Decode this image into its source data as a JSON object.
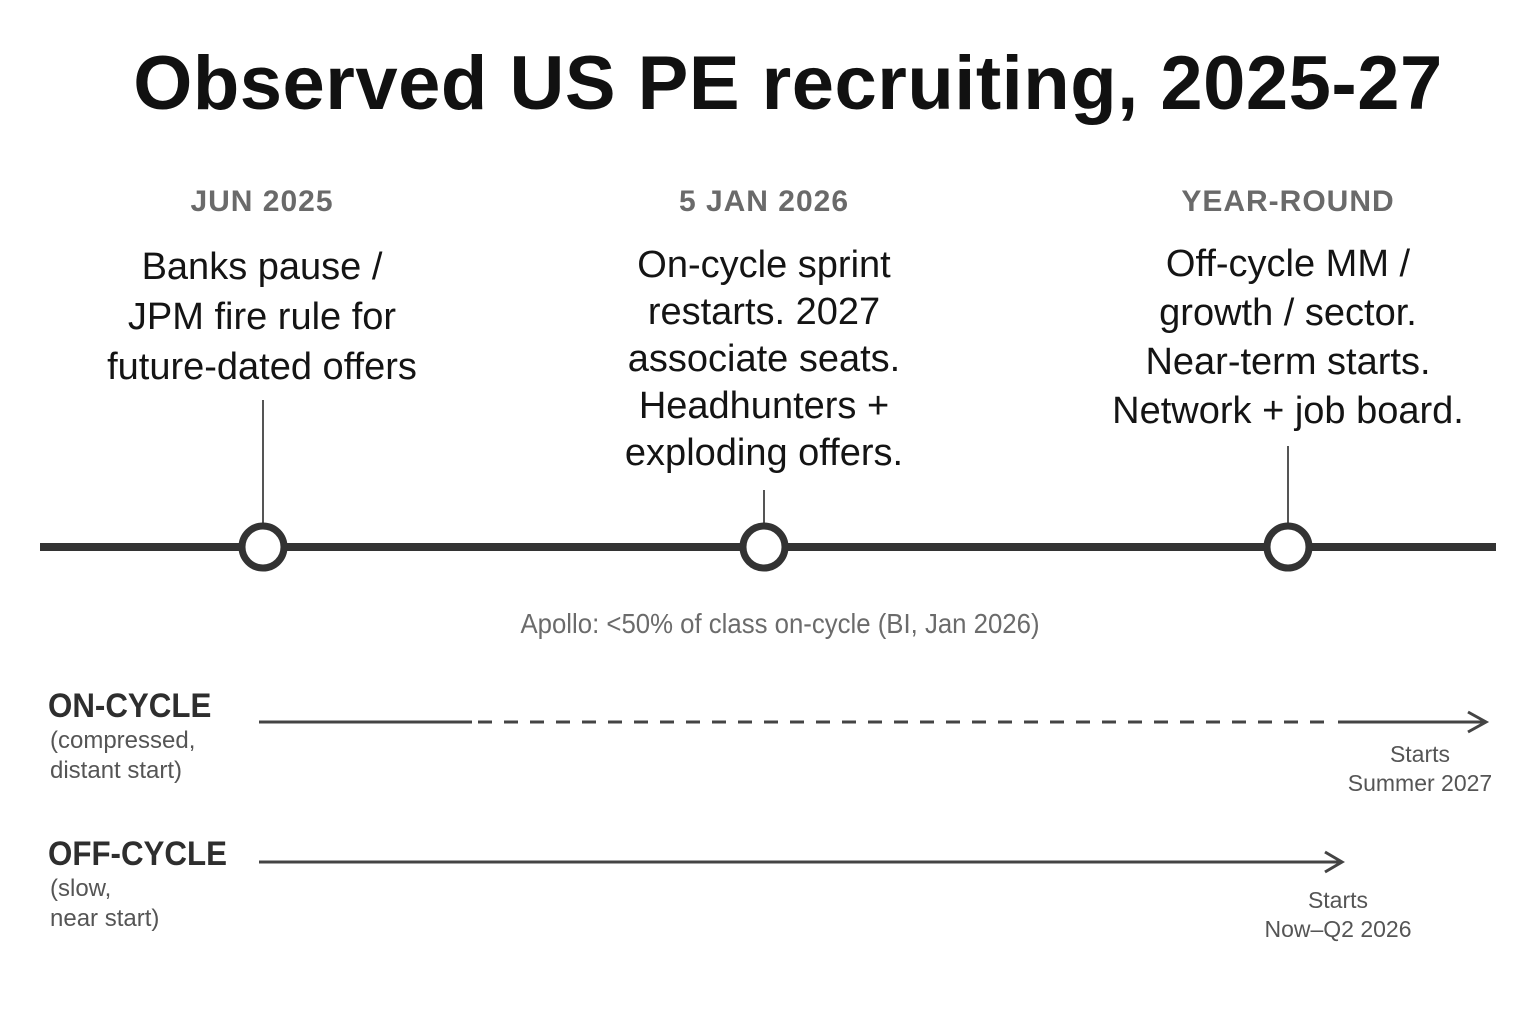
{
  "title": "Observed US PE recruiting, 2025-27",
  "events": [
    {
      "date": "JUN 2025",
      "lines": [
        "Banks pause /",
        "JPM fire rule for",
        "future-dated offers"
      ]
    },
    {
      "date": "5 JAN 2026",
      "lines": [
        "On-cycle sprint",
        "restarts. 2027",
        "associate seats.",
        "Headhunters +",
        "exploding offers."
      ]
    },
    {
      "date": "YEAR-ROUND",
      "lines": [
        "Off-cycle MM /",
        "growth / sector.",
        "Near-term starts.",
        "Network + job board."
      ]
    }
  ],
  "note": "Apollo: <50% of class on-cycle (BI, Jan 2026)",
  "tracks": {
    "on_cycle": {
      "name": "ON-CYCLE",
      "sub_lines": [
        "(compressed,",
        "distant start)"
      ],
      "end_lines": [
        "Starts",
        "Summer 2027"
      ],
      "line_style": "solid-then-dashed"
    },
    "off_cycle": {
      "name": "OFF-CYCLE",
      "sub_lines": [
        "(slow,",
        "near start)"
      ],
      "end_lines": [
        "Starts",
        "Now–Q2 2026"
      ],
      "line_style": "solid"
    }
  },
  "colors": {
    "timeline": "#333333",
    "marker_fill": "#ffffff",
    "track_arrow": "#444444"
  }
}
